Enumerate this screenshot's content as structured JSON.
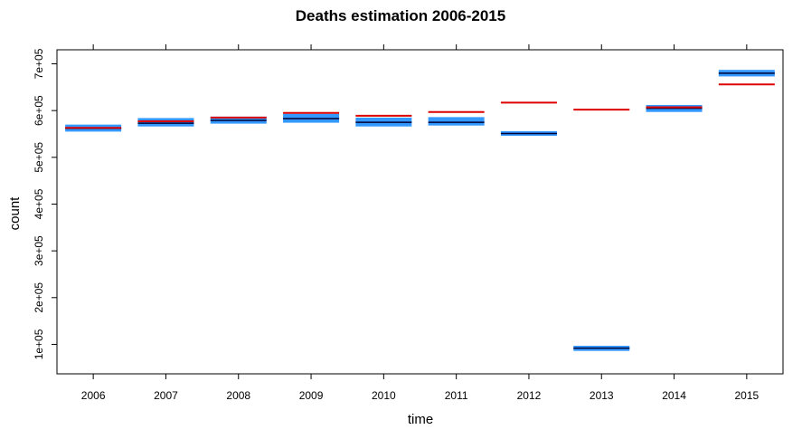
{
  "chart_data": {
    "type": "interval",
    "title": "Deaths estimation 2006-2015",
    "xlabel": "time",
    "ylabel": "count",
    "categories": [
      "2006",
      "2007",
      "2008",
      "2009",
      "2010",
      "2011",
      "2012",
      "2013",
      "2014",
      "2015"
    ],
    "y_ticks": [
      100000,
      200000,
      300000,
      400000,
      500000,
      600000,
      700000
    ],
    "y_tick_labels": [
      "1e+05",
      "2e+05",
      "3e+05",
      "4e+05",
      "5e+05",
      "6e+05",
      "7e+05"
    ],
    "ylim": [
      37000,
      730000
    ],
    "series": [
      {
        "role": "estimate-band",
        "lower": [
          555000,
          566000,
          572000,
          574000,
          566000,
          568000,
          546000,
          86000,
          597000,
          673000
        ],
        "center": [
          562000,
          573000,
          579000,
          583000,
          575000,
          575000,
          551000,
          92000,
          605000,
          680000
        ],
        "upper": [
          570000,
          584000,
          587000,
          593000,
          585000,
          586000,
          556000,
          97000,
          612000,
          687000
        ]
      },
      {
        "role": "observed",
        "values": [
          563000,
          577000,
          585000,
          595000,
          589000,
          597000,
          617000,
          602000,
          607000,
          656000
        ]
      }
    ],
    "colors": {
      "band": "#3399ff",
      "estimate": "#000033",
      "observed": "#dd0000",
      "frame": "#000000"
    },
    "grid": false,
    "legend": "none"
  }
}
